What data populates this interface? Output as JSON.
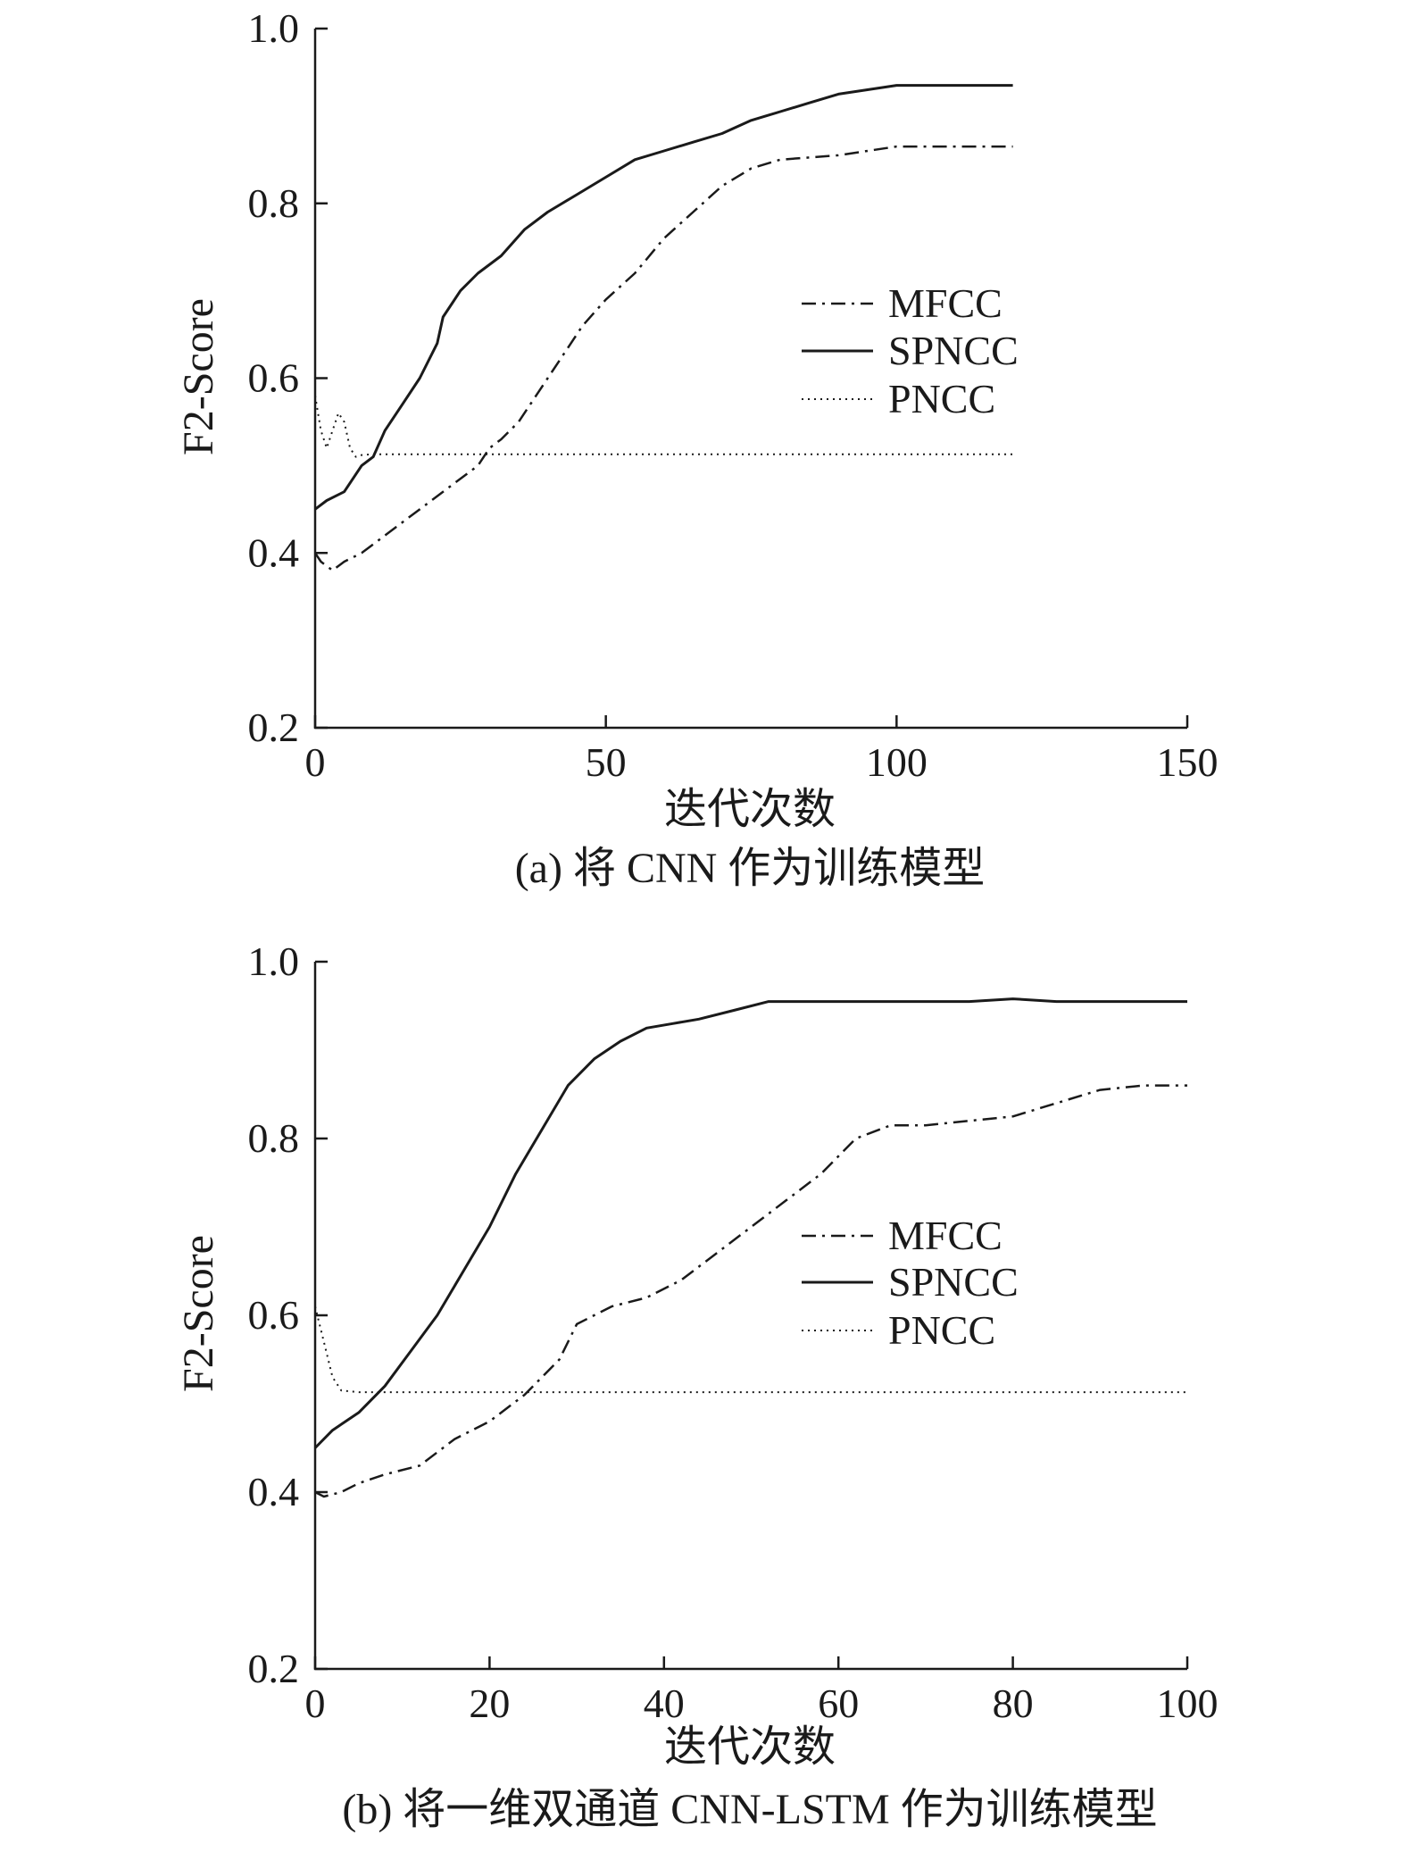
{
  "chart_data": [
    {
      "type": "line",
      "caption": "(a) 将 CNN 作为训练模型",
      "xlabel": "迭代次数",
      "ylabel": "F2-Score",
      "xlim": [
        0,
        150
      ],
      "ylim": [
        0.2,
        1.0
      ],
      "xticks": [
        "0",
        "50",
        "100",
        "150"
      ],
      "yticks": [
        "0.2",
        "0.4",
        "0.6",
        "0.8",
        "1.0"
      ],
      "legend_position": "right-middle",
      "series": [
        {
          "name": "MFCC",
          "style": "dashdot",
          "x": [
            0,
            1,
            3,
            5,
            8,
            12,
            16,
            20,
            24,
            28,
            30,
            32,
            35,
            38,
            42,
            46,
            50,
            55,
            60,
            65,
            70,
            75,
            80,
            90,
            100,
            110,
            120
          ],
          "y": [
            0.4,
            0.39,
            0.38,
            0.39,
            0.4,
            0.42,
            0.44,
            0.46,
            0.48,
            0.5,
            0.52,
            0.53,
            0.55,
            0.58,
            0.62,
            0.66,
            0.69,
            0.72,
            0.76,
            0.79,
            0.82,
            0.84,
            0.85,
            0.855,
            0.865,
            0.865,
            0.865
          ]
        },
        {
          "name": "SPNCC",
          "style": "solid",
          "x": [
            0,
            2,
            5,
            8,
            10,
            12,
            15,
            18,
            21,
            22,
            25,
            28,
            32,
            36,
            40,
            45,
            50,
            55,
            60,
            65,
            70,
            75,
            80,
            85,
            90,
            95,
            100,
            110,
            120
          ],
          "y": [
            0.45,
            0.46,
            0.47,
            0.5,
            0.51,
            0.54,
            0.57,
            0.6,
            0.64,
            0.67,
            0.7,
            0.72,
            0.74,
            0.77,
            0.79,
            0.81,
            0.83,
            0.85,
            0.86,
            0.87,
            0.88,
            0.895,
            0.905,
            0.915,
            0.925,
            0.93,
            0.935,
            0.935,
            0.935
          ]
        },
        {
          "name": "PNCC",
          "style": "dotted",
          "x": [
            0,
            1,
            2,
            3,
            4,
            5,
            6,
            7,
            8,
            10,
            20,
            40,
            60,
            80,
            100,
            120
          ],
          "y": [
            0.58,
            0.54,
            0.52,
            0.54,
            0.56,
            0.55,
            0.52,
            0.51,
            0.512,
            0.513,
            0.513,
            0.513,
            0.513,
            0.513,
            0.513,
            0.513
          ]
        }
      ]
    },
    {
      "type": "line",
      "caption": "(b) 将一维双通道 CNN-LSTM 作为训练模型",
      "xlabel": "迭代次数",
      "ylabel": "F2-Score",
      "xlim": [
        0,
        100
      ],
      "ylim": [
        0.2,
        1.0
      ],
      "xticks": [
        "0",
        "20",
        "40",
        "60",
        "80",
        "100"
      ],
      "yticks": [
        "0.2",
        "0.4",
        "0.6",
        "0.8",
        "1.0"
      ],
      "legend_position": "right-middle",
      "series": [
        {
          "name": "MFCC",
          "style": "dashdot",
          "x": [
            0,
            1,
            3,
            5,
            8,
            12,
            16,
            20,
            24,
            28,
            30,
            34,
            38,
            42,
            46,
            50,
            54,
            58,
            62,
            66,
            70,
            75,
            80,
            85,
            90,
            95,
            100
          ],
          "y": [
            0.4,
            0.395,
            0.4,
            0.41,
            0.42,
            0.43,
            0.46,
            0.48,
            0.51,
            0.55,
            0.59,
            0.61,
            0.62,
            0.64,
            0.67,
            0.7,
            0.73,
            0.76,
            0.8,
            0.815,
            0.815,
            0.82,
            0.825,
            0.84,
            0.855,
            0.86,
            0.86
          ]
        },
        {
          "name": "SPNCC",
          "style": "solid",
          "x": [
            0,
            2,
            5,
            8,
            11,
            14,
            17,
            20,
            23,
            26,
            29,
            32,
            35,
            38,
            41,
            44,
            48,
            52,
            56,
            60,
            64,
            70,
            75,
            80,
            85,
            90,
            95,
            97,
            100
          ],
          "y": [
            0.45,
            0.47,
            0.49,
            0.52,
            0.56,
            0.6,
            0.65,
            0.7,
            0.76,
            0.81,
            0.86,
            0.89,
            0.91,
            0.925,
            0.93,
            0.935,
            0.945,
            0.955,
            0.955,
            0.955,
            0.955,
            0.955,
            0.955,
            0.958,
            0.955,
            0.955,
            0.955,
            0.955,
            0.955
          ]
        },
        {
          "name": "PNCC",
          "style": "dotted",
          "x": [
            0,
            1,
            2,
            3,
            5,
            7,
            10,
            20,
            40,
            60,
            80,
            100
          ],
          "y": [
            0.61,
            0.57,
            0.53,
            0.515,
            0.513,
            0.513,
            0.513,
            0.513,
            0.513,
            0.513,
            0.513,
            0.513
          ]
        }
      ]
    }
  ]
}
